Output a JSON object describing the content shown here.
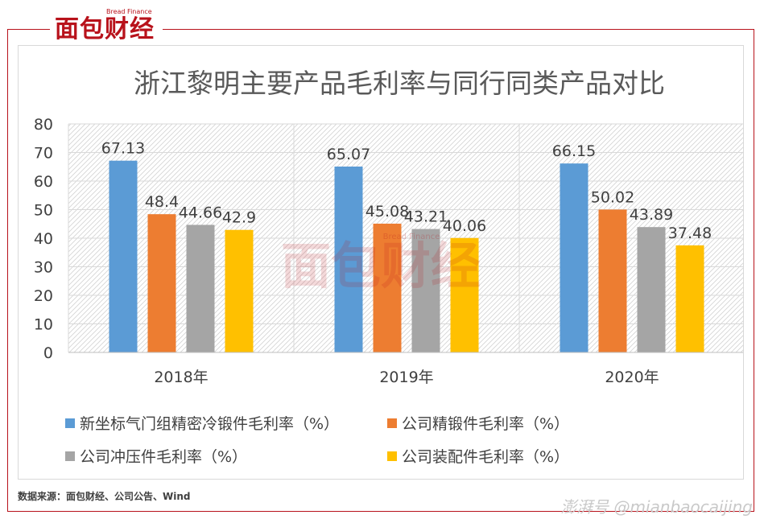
{
  "brand": {
    "logo_text": "面包财经",
    "logo_sub": "Bread Finance",
    "color": "#b8121b"
  },
  "chart_data": {
    "type": "bar",
    "title": "浙江黎明主要产品毛利率与同行同类产品对比",
    "categories": [
      "2018年",
      "2019年",
      "2020年"
    ],
    "series": [
      {
        "name": "新坐标气门组精密冷锻件毛利率（%）",
        "values": [
          67.13,
          65.07,
          66.15
        ],
        "color": "#5b9bd5"
      },
      {
        "name": "公司精锻件毛利率（%）",
        "values": [
          48.4,
          45.08,
          50.02
        ],
        "color": "#ed7d31"
      },
      {
        "name": "公司冲压件毛利率（%）",
        "values": [
          44.66,
          43.21,
          43.89
        ],
        "color": "#a5a5a5"
      },
      {
        "name": "公司装配件毛利率（%）",
        "values": [
          42.9,
          40.06,
          37.48
        ],
        "color": "#ffc000"
      }
    ],
    "ylim": [
      0,
      80
    ],
    "yticks": [
      0,
      10,
      20,
      30,
      40,
      50,
      60,
      70,
      80
    ],
    "grid": true,
    "legend": "bottom"
  },
  "source": "数据来源：面包财经、公司公告、Wind",
  "watermark": "澎湃号 @mianbaocaijing"
}
